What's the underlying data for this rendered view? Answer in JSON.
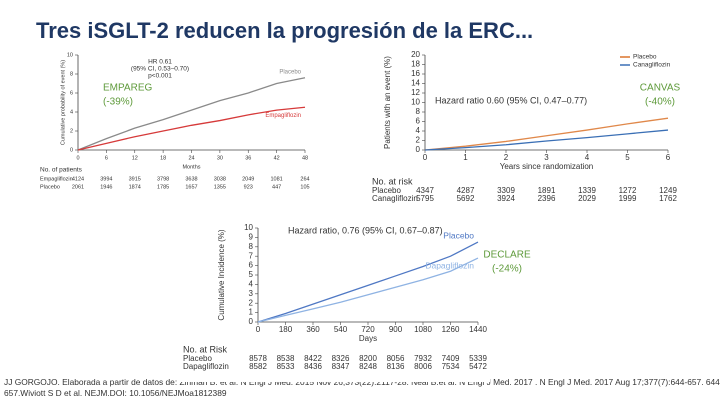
{
  "title": "Tres iSGLT-2 reducen la progresión de la ERC...",
  "footnote": [
    "JJ GORGOJO. Elaborada a partir de datos de: Zinman B. et al. N Engl J Med. 2015 Nov 26;373(22):2117-28. Neal B.et al. N Engl J Med. 2017 . N Engl J Med. 2017 Aug 17;377(7):644-657. 644",
    "657.Wiviott S D et al. NEJM.DOI: 10.1056/NEJMoa1812389"
  ],
  "chart_data": [
    {
      "type": "line",
      "label": [
        "EMPAREG",
        "(-39%)"
      ],
      "annotation": [
        "HR 0.61",
        "(95% CI, 0.53–0.70)",
        "p<0.001"
      ],
      "xlabel": "Months",
      "ylabel": "Cumulative probability of event (%)",
      "x": [
        0,
        6,
        12,
        18,
        24,
        30,
        36,
        42,
        48
      ],
      "xlim": [
        0,
        48
      ],
      "xticks": [
        0,
        6,
        12,
        18,
        24,
        30,
        36,
        42,
        48
      ],
      "ylim": [
        0,
        10
      ],
      "yticks": [
        0,
        2,
        4,
        6,
        8,
        10
      ],
      "series": [
        {
          "name": "Placebo",
          "color": "#8a8a8a",
          "values": [
            0,
            1.2,
            2.3,
            3.2,
            4.2,
            5.2,
            6.0,
            7.0,
            7.6
          ]
        },
        {
          "name": "Empagliflozin",
          "color": "#d63a3a",
          "values": [
            0,
            0.7,
            1.4,
            2.0,
            2.6,
            3.1,
            3.7,
            4.2,
            4.5
          ]
        }
      ],
      "risk": {
        "title": "No. of patients",
        "rows": [
          {
            "name": "Empagliflozin",
            "values": [
              4124,
              3994,
              3915,
              3798,
              3638,
              3038,
              2049,
              1081,
              264
            ]
          },
          {
            "name": "Placebo",
            "values": [
              2061,
              1946,
              1874,
              1785,
              1657,
              1355,
              923,
              447,
              105
            ]
          }
        ]
      }
    },
    {
      "type": "line",
      "label": [
        "CANVAS",
        "(-40%)"
      ],
      "annotation": [
        "Hazard ratio 0.60 (95% CI, 0.47–0.77)"
      ],
      "xlabel": "Years since randomization",
      "ylabel": "Patients with an event (%)",
      "x": [
        0,
        1,
        2,
        3,
        4,
        5,
        6
      ],
      "xlim": [
        0,
        6
      ],
      "xticks": [
        0,
        1,
        2,
        3,
        4,
        5,
        6
      ],
      "ylim": [
        0,
        20
      ],
      "yticks": [
        0,
        2,
        4,
        6,
        8,
        10,
        12,
        14,
        16,
        18,
        20
      ],
      "series": [
        {
          "name": "Placebo",
          "color": "#e0884a",
          "values": [
            0,
            0.8,
            1.8,
            3.0,
            4.2,
            5.5,
            6.7
          ]
        },
        {
          "name": "Canagliflozin",
          "color": "#3a6fb5",
          "values": [
            0,
            0.5,
            1.1,
            1.9,
            2.6,
            3.4,
            4.2
          ]
        }
      ],
      "risk": {
        "title": "No. at risk",
        "rows": [
          {
            "name": "Placebo",
            "values": [
              4347,
              4287,
              3309,
              1891,
              1339,
              1272,
              1249
            ]
          },
          {
            "name": "Canagliflozin",
            "values": [
              5795,
              5692,
              3924,
              2396,
              2029,
              1999,
              1762
            ]
          }
        ]
      }
    },
    {
      "type": "line",
      "label": [
        "DECLARE",
        "(-24%)"
      ],
      "annotation": [
        "Hazard ratio, 0.76 (95% CI, 0.67–0.87)"
      ],
      "xlabel": "Days",
      "ylabel": "Cumulative Incidence (%)",
      "x": [
        0,
        180,
        360,
        540,
        720,
        900,
        1080,
        1260,
        1440
      ],
      "xlim": [
        0,
        1440
      ],
      "xticks": [
        0,
        180,
        360,
        540,
        720,
        900,
        1080,
        1260,
        1440
      ],
      "ylim": [
        0,
        10
      ],
      "yticks": [
        0,
        1,
        2,
        3,
        4,
        5,
        6,
        7,
        8,
        9,
        10
      ],
      "series": [
        {
          "name": "Placebo",
          "color": "#4f78c4",
          "values": [
            0,
            0.9,
            1.9,
            2.9,
            3.9,
            4.9,
            5.9,
            7.0,
            8.5
          ]
        },
        {
          "name": "Dapagliflozin",
          "color": "#8fb3e3",
          "values": [
            0,
            0.7,
            1.4,
            2.1,
            2.9,
            3.7,
            4.5,
            5.4,
            6.8
          ]
        }
      ],
      "risk": {
        "title": "No. at Risk",
        "rows": [
          {
            "name": "Placebo",
            "values": [
              8578,
              8538,
              8422,
              8326,
              8200,
              8056,
              7932,
              7409,
              5339
            ]
          },
          {
            "name": "Dapagliflozin",
            "values": [
              8582,
              8533,
              8436,
              8347,
              8248,
              8136,
              8006,
              7534,
              5472
            ]
          }
        ]
      }
    }
  ]
}
